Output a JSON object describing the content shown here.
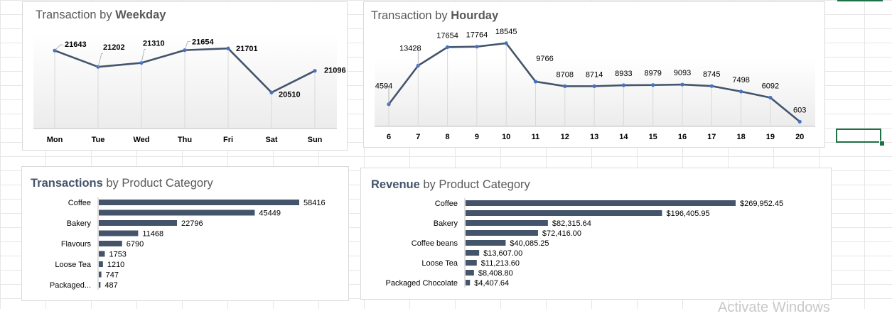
{
  "windows_watermark": "Activate Windows",
  "chart_data": [
    {
      "type": "line",
      "title_prefix": "Transaction",
      "title_mid": " by ",
      "title_bold": "Weekday",
      "categories": [
        "Mon",
        "Tue",
        "Wed",
        "Thu",
        "Fri",
        "Sat",
        "Sun"
      ],
      "values": [
        21643,
        21202,
        21310,
        21654,
        21701,
        20510,
        21096
      ],
      "ylim": [
        20400,
        21800
      ],
      "line_color": "#44546a",
      "marker_color": "#4472c4"
    },
    {
      "type": "line",
      "title_prefix": "Transaction",
      "title_mid": " by ",
      "title_bold": "Hourday",
      "categories": [
        "6",
        "7",
        "8",
        "9",
        "10",
        "11",
        "12",
        "13",
        "14",
        "15",
        "16",
        "17",
        "18",
        "19",
        "20"
      ],
      "values": [
        4594,
        13428,
        17654,
        17764,
        18545,
        9766,
        8708,
        8714,
        8933,
        8979,
        9093,
        8745,
        7498,
        6092,
        603
      ],
      "ylim": [
        0,
        19500
      ],
      "line_color": "#44546a",
      "marker_color": "#4472c4"
    },
    {
      "type": "bar",
      "orientation": "horizontal",
      "title_bold": "Transactions",
      "title_rest": " by Product Category",
      "category_labels": [
        "Coffee",
        "",
        "Bakery",
        "",
        "Flavours",
        "",
        "Loose Tea",
        "",
        "Packaged..."
      ],
      "value_labels": [
        "58416",
        "45449",
        "22796",
        "11468",
        "6790",
        "1753",
        "1210",
        "747",
        "487"
      ],
      "values": [
        58416,
        45449,
        22796,
        11468,
        6790,
        1753,
        1210,
        747,
        487
      ],
      "bar_color": "#44546a"
    },
    {
      "type": "bar",
      "orientation": "horizontal",
      "title_bold": "Revenue",
      "title_rest": " by Product Category",
      "category_labels": [
        "Coffee",
        "",
        "Bakery",
        "",
        "Coffee beans",
        "",
        "Loose Tea",
        "",
        "Packaged Chocolate"
      ],
      "value_labels": [
        "$269,952.45",
        "$196,405.95",
        "$82,315.64",
        "$72,416.00",
        "$40,085.25",
        "$13,607.00",
        "$11,213.60",
        "$8,408.80",
        "$4,407.64"
      ],
      "values": [
        269952.45,
        196405.95,
        82315.64,
        72416.0,
        40085.25,
        13607.0,
        11213.6,
        8408.8,
        4407.64
      ],
      "bar_color": "#44546a"
    }
  ]
}
